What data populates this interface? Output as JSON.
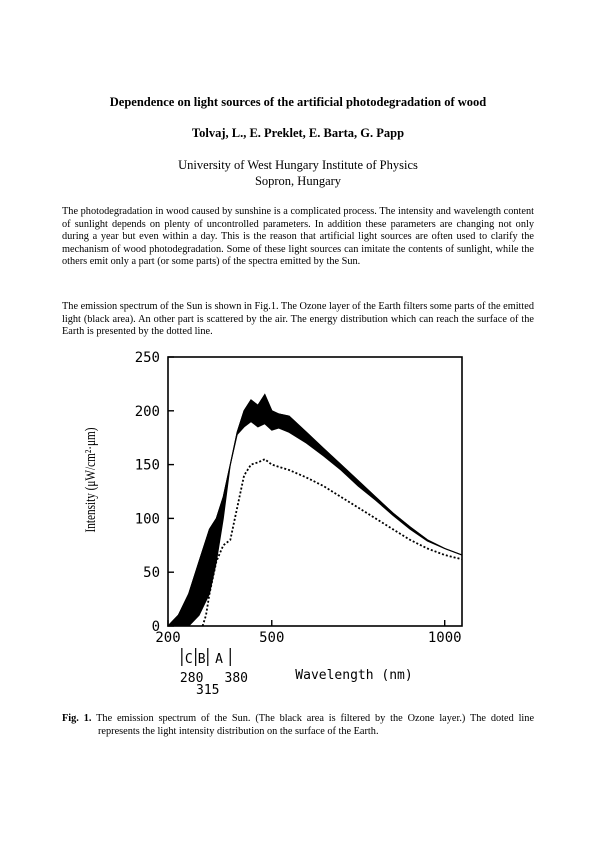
{
  "paper": {
    "title": "Dependence on light sources of the artificial photodegradation of wood",
    "authors": "Tolvaj, L., E. Preklet, E. Barta, G. Papp",
    "affiliation_line1": "University of West Hungary Institute of Physics",
    "affiliation_line2": "Sopron, Hungary",
    "paragraph1": "The photodegradation in wood caused by sunshine is a complicated process. The intensity and wavelength content of sunlight depends on plenty of uncontrolled parameters. In addition these parameters are changing not only during a year but even within a day. This is the reason that artificial light sources are often used to clarify the mechanism of wood photodegradation. Some of these light sources can imitate the contents of sunlight, while the others emit only a part (or some parts) of the spectra emitted by the Sun.",
    "paragraph2": "The emission spectrum of the Sun is shown in Fig.1. The Ozone layer of the Earth filters some parts of the emitted light (black area). An other part is scattered by the air. The energy distribution which can reach the surface of the Earth is presented by the dotted line.",
    "caption_label": "Fig. 1.",
    "caption_text": "The emission spectrum of the Sun. (The black area is filtered by the Ozone layer.) The doted line represents the light intensity distribution on the surface of the Earth."
  },
  "chart_data": {
    "type": "line",
    "ylabel": "Intensity (μW/cm²·μm)",
    "xlabel": "Wavelength (nm)",
    "xlim": [
      200,
      1050
    ],
    "ylim": [
      0,
      250
    ],
    "xticks": [
      "200",
      "500",
      "1000"
    ],
    "yticks": [
      "0",
      "50",
      "100",
      "150",
      "200",
      "250"
    ],
    "uv_band_letters": [
      "C",
      "B",
      "A"
    ],
    "uv_band_boundaries": [
      "280",
      "315",
      "380"
    ],
    "series": [
      {
        "style": "solid-upper",
        "x": [
          200,
          230,
          260,
          290,
          320,
          340,
          360,
          380,
          400,
          420,
          440,
          460,
          480,
          500,
          520,
          550,
          600,
          650,
          700,
          750,
          800,
          850,
          900,
          950,
          1000,
          1050
        ],
        "y": [
          0,
          10,
          30,
          60,
          90,
          100,
          120,
          150,
          180,
          200,
          210,
          205,
          215,
          200,
          197,
          195,
          180,
          165,
          150,
          135,
          120,
          105,
          92,
          80,
          72,
          66
        ]
      },
      {
        "style": "solid-lower",
        "x": [
          200,
          230,
          260,
          290,
          320,
          340,
          360,
          380,
          400,
          420,
          440,
          460,
          480,
          500,
          520,
          550,
          600,
          650,
          700,
          750,
          800,
          850,
          900,
          950,
          1000,
          1050
        ],
        "y": [
          0,
          0,
          0,
          10,
          30,
          60,
          100,
          150,
          178,
          185,
          190,
          185,
          188,
          182,
          184,
          180,
          170,
          158,
          145,
          130,
          117,
          103,
          90,
          79,
          72,
          66
        ]
      },
      {
        "style": "dotted",
        "x": [
          300,
          310,
          320,
          340,
          360,
          380,
          400,
          420,
          440,
          460,
          480,
          500,
          520,
          550,
          600,
          650,
          700,
          750,
          800,
          850,
          900,
          950,
          1000,
          1050
        ],
        "y": [
          0,
          10,
          30,
          60,
          75,
          80,
          110,
          140,
          150,
          152,
          155,
          150,
          148,
          145,
          138,
          130,
          120,
          110,
          100,
          90,
          80,
          72,
          66,
          62
        ]
      }
    ]
  }
}
